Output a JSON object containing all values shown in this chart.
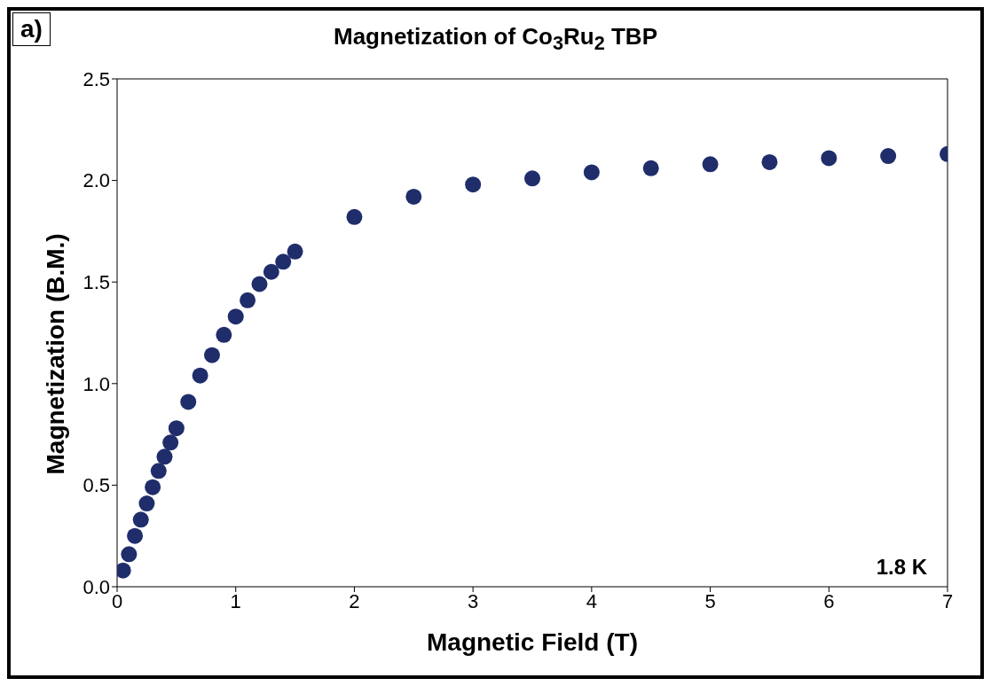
{
  "chart_data": {
    "type": "scatter",
    "title": "Magnetization of Co$_{3}$Ru$_{2}$ TBP",
    "xlabel": "Magnetic Field (T)",
    "ylabel": "Magnetization (B.M.)",
    "annotations": [
      "a)",
      "1.8 K"
    ],
    "x": [
      0.05,
      0.1,
      0.15,
      0.2,
      0.25,
      0.3,
      0.35,
      0.4,
      0.45,
      0.5,
      0.6,
      0.7,
      0.8,
      0.9,
      1.0,
      1.1,
      1.2,
      1.3,
      1.4,
      1.5,
      2,
      2.5,
      3,
      3.5,
      4,
      4.5,
      5,
      5.5,
      6,
      6.5,
      7
    ],
    "series": [
      {
        "color": "#1f2d6b",
        "values": [
          0.08,
          0.16,
          0.25,
          0.33,
          0.41,
          0.49,
          0.57,
          0.64,
          0.71,
          0.78,
          0.91,
          1.04,
          1.14,
          1.24,
          1.33,
          1.41,
          1.49,
          1.55,
          1.6,
          1.65,
          1.82,
          1.92,
          1.98,
          2.01,
          2.04,
          2.06,
          2.08,
          2.09,
          2.11,
          2.12,
          2.13
        ]
      }
    ],
    "xlim": [
      0,
      7
    ],
    "xticks": [
      0,
      1,
      2,
      3,
      4,
      5,
      6,
      7
    ],
    "ylim": [
      0,
      2.5
    ],
    "yticks": [
      {
        "value": 0,
        "label": "0.0"
      },
      {
        "value": 0.5,
        "label": "0.5"
      },
      {
        "value": 1,
        "label": "1.0"
      },
      {
        "value": 1.5,
        "label": "1.5"
      },
      {
        "value": 2,
        "label": "2.0"
      },
      {
        "value": 2.5,
        "label": "2.5"
      }
    ],
    "grid": false,
    "legend": false,
    "marker": "circle"
  }
}
